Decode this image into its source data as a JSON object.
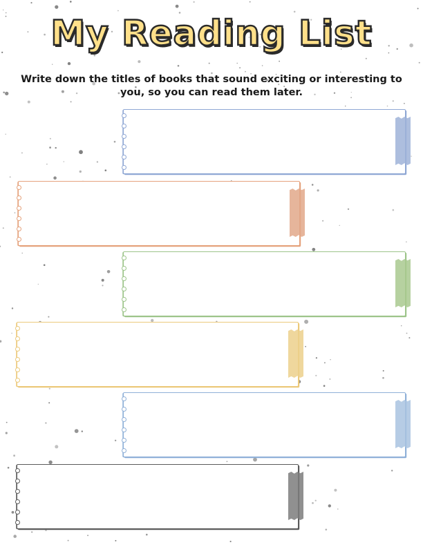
{
  "page": {
    "title": "My Reading List",
    "instructions": "Write down the titles of books that sound exciting or interesting to you, so you can read them later."
  },
  "colors": {
    "title_fill": "#ffe08a",
    "title_outline": "#2a2a2a",
    "speckle": "#777777"
  },
  "entries": [
    {
      "color": "#8fa7d4",
      "tape": "#9fb3d8",
      "value": ""
    },
    {
      "color": "#e5a27c",
      "tape": "#e2a88a",
      "value": ""
    },
    {
      "color": "#9cc489",
      "tape": "#a9c98f",
      "value": ""
    },
    {
      "color": "#ecc97a",
      "tape": "#ecd08c",
      "value": ""
    },
    {
      "color": "#8fb0d8",
      "tape": "#a9c3e0",
      "value": ""
    },
    {
      "color": "#5a5a5a",
      "tape": "#7c7c7c",
      "value": ""
    }
  ]
}
